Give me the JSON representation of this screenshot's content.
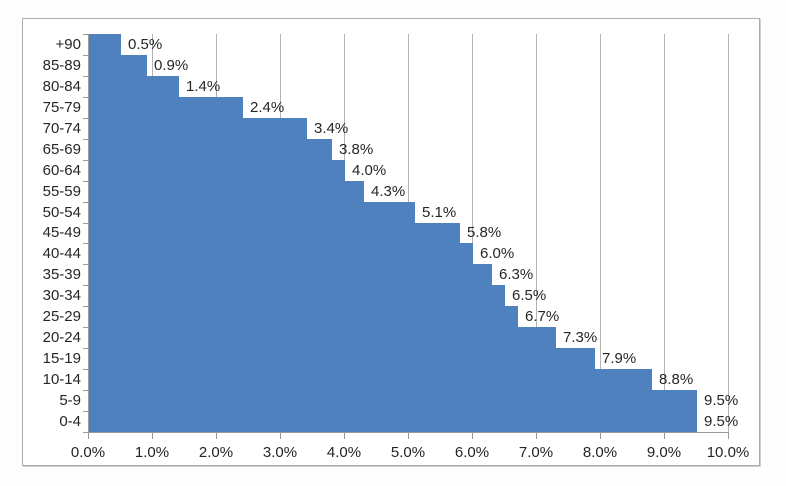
{
  "chart_data": {
    "type": "bar",
    "orientation": "horizontal",
    "title": "",
    "categories": [
      "+90",
      "85-89",
      "80-84",
      "75-79",
      "70-74",
      "65-69",
      "60-64",
      "55-59",
      "50-54",
      "45-49",
      "40-44",
      "35-39",
      "30-34",
      "25-29",
      "20-24",
      "15-19",
      "10-14",
      "5-9",
      "0-4"
    ],
    "values": [
      0.5,
      0.9,
      1.4,
      2.4,
      3.4,
      3.8,
      4.0,
      4.3,
      5.1,
      5.8,
      6.0,
      6.3,
      6.5,
      6.7,
      7.3,
      7.9,
      8.8,
      9.5,
      9.5
    ],
    "value_labels": [
      "0.5%",
      "0.9%",
      "1.4%",
      "2.4%",
      "3.4%",
      "3.8%",
      "4.0%",
      "4.3%",
      "5.1%",
      "5.8%",
      "6.0%",
      "6.3%",
      "6.5%",
      "6.7%",
      "7.3%",
      "7.9%",
      "8.8%",
      "9.5%",
      "9.5%"
    ],
    "x_tick_labels": [
      "0.0%",
      "1.0%",
      "2.0%",
      "3.0%",
      "4.0%",
      "5.0%",
      "6.0%",
      "7.0%",
      "8.0%",
      "9.0%",
      "10.0%"
    ],
    "xlim": [
      0,
      10
    ],
    "grid": true,
    "legend": false,
    "colors": {
      "bar": "#4e81bd",
      "gridline": "#b3b3b3",
      "axis": "#9a9a9a",
      "text": "#262626",
      "frame_border": "#ababab"
    }
  }
}
